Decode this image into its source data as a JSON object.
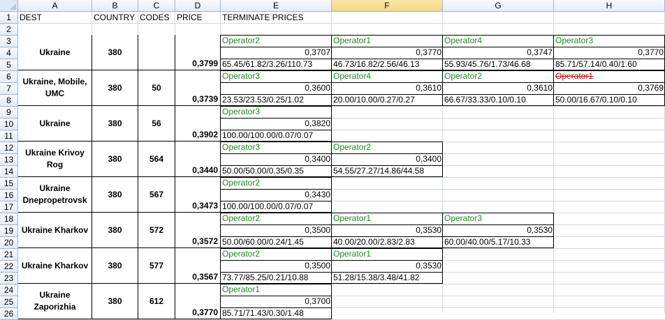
{
  "columns": [
    "A",
    "B",
    "C",
    "D",
    "E",
    "F",
    "G",
    "H"
  ],
  "selected_column": "F",
  "rows": [
    "1",
    "2",
    "3",
    "4",
    "5",
    "6",
    "7",
    "8",
    "9",
    "10",
    "11",
    "12",
    "13",
    "14",
    "15",
    "16",
    "17",
    "18",
    "19",
    "20",
    "21",
    "22",
    "23",
    "24",
    "25",
    "26"
  ],
  "headers": {
    "dest": "DEST",
    "country": "COUNTRY",
    "codes": "CODES",
    "price": "PRICE",
    "terminate": "TERMINATE PRICES"
  },
  "colors": {
    "operator_green": "#1e8c1e",
    "strike_red": "#e00000",
    "grid": "#d0d7e5",
    "header_bg": "#e4ecf7",
    "selected_header": "#f8d57b"
  },
  "groups": [
    {
      "dest": "Ukraine",
      "country": "380",
      "code": "",
      "price": "0,3799",
      "ops": [
        {
          "name": "Operator2",
          "rate": "0,3707",
          "stats": "65.45/61.82/3.26/110.73"
        },
        {
          "name": "Operator1",
          "rate": "0,3770",
          "stats": "46.73/16.82/2.56/46.13"
        },
        {
          "name": "Operator4",
          "rate": "0,3747",
          "stats": "55.93/45.76/1.73/46.68"
        },
        {
          "name": "Operator3",
          "rate": "0,3770",
          "stats": "85.71/57.14/0.40/1.60"
        }
      ]
    },
    {
      "dest": "Ukraine, Mobile, UMC",
      "country": "380",
      "code": "50",
      "price": "0,3739",
      "ops": [
        {
          "name": "Operator3",
          "rate": "0,3600",
          "stats": "23.53/23.53/0.25/1.02"
        },
        {
          "name": "Operator4",
          "rate": "0,3610",
          "stats": "20.00/10.00/0.27/0.27"
        },
        {
          "name": "Operator2",
          "rate": "0,3610",
          "stats": "66.67/33.33/0.10/0.10"
        },
        {
          "name": "Operator1",
          "rate": "0,3769",
          "stats": "50.00/16.67/0.10/0.10",
          "strike": true
        }
      ]
    },
    {
      "dest": "Ukraine",
      "country": "380",
      "code": "56",
      "price": "0,3902",
      "ops": [
        {
          "name": "Operator3",
          "rate": "0,3820",
          "stats": "100.00/100.00/0.07/0.07"
        }
      ]
    },
    {
      "dest": "Ukraine Krivoy Rog",
      "country": "380",
      "code": "564",
      "price": "0,3440",
      "ops": [
        {
          "name": "Operator3",
          "rate": "0,3400",
          "stats": "50.00/50.00/0.35/0.35"
        },
        {
          "name": "Operator2",
          "rate": "0,3400",
          "stats": "54.55/27.27/14.86/44.58"
        }
      ]
    },
    {
      "dest": "Ukraine Dnepropetrovsk",
      "country": "380",
      "code": "567",
      "price": "0,3473",
      "ops": [
        {
          "name": "Operator2",
          "rate": "0,3430",
          "stats": "100.00/100.00/0.07/0.07"
        }
      ]
    },
    {
      "dest": "Ukraine Kharkov",
      "country": "380",
      "code": "572",
      "price": "0,3572",
      "ops": [
        {
          "name": "Operator2",
          "rate": "0,3500",
          "stats": "50.00/60.00/0.24/1.45"
        },
        {
          "name": "Operator1",
          "rate": "0,3530",
          "stats": "40.00/20.00/2.83/2.83"
        },
        {
          "name": "Operator3",
          "rate": "0,3530",
          "stats": "60.00/40.00/5.17/10.33"
        }
      ]
    },
    {
      "dest": "Ukraine Kharkov",
      "country": "380",
      "code": "577",
      "price": "0,3567",
      "ops": [
        {
          "name": "Operator2",
          "rate": "0,3500",
          "stats": "73.77/85.25/0.21/10.88"
        },
        {
          "name": "Operator1",
          "rate": "0,3530",
          "stats": "51.28/15.38/3.48/41.82"
        }
      ]
    },
    {
      "dest": "Ukraine Zaporizhia",
      "country": "380",
      "code": "612",
      "price": "0,3770",
      "ops": [
        {
          "name": "Operator1",
          "rate": "0,3700",
          "stats": "85.71/71.43/0.30/1.48"
        }
      ]
    }
  ]
}
